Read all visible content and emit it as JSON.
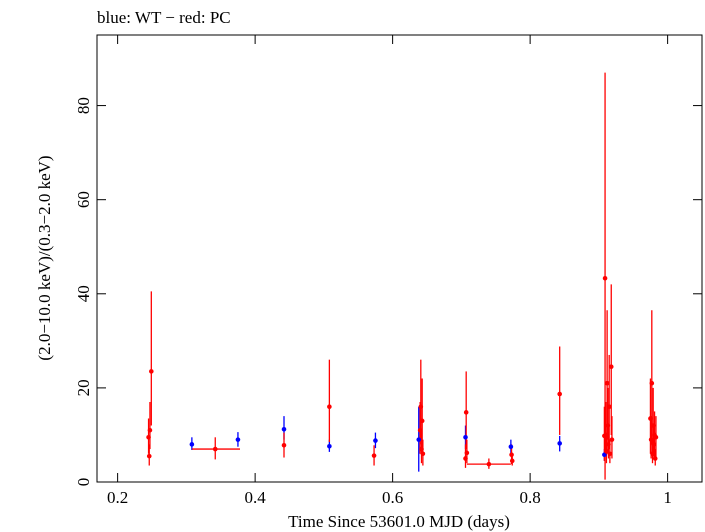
{
  "chart_data": {
    "type": "scatter",
    "title": "blue: WT − red: PC",
    "xlabel": "Time Since 53601.0 MJD (days)",
    "ylabel": "(2.0−10.0 keV)/(0.3−2.0 keV)",
    "xlim": [
      0.17,
      1.05
    ],
    "ylim": [
      0,
      95
    ],
    "xticks": [
      0.2,
      0.4,
      0.6,
      0.8,
      1
    ],
    "xtick_labels": [
      "0.2",
      "0.4",
      "0.6",
      "0.8",
      "1"
    ],
    "yticks": [
      0,
      20,
      40,
      60,
      80
    ],
    "ytick_labels": [
      "0",
      "20",
      "40",
      "60",
      "80"
    ],
    "grid": false,
    "series": [
      {
        "name": "WT",
        "color": "#0000ff",
        "points": [
          {
            "x": 0.308,
            "y": 8.0,
            "ylo": 6.8,
            "yhi": 9.5
          },
          {
            "x": 0.375,
            "y": 9.0,
            "ylo": 7.5,
            "yhi": 10.6
          },
          {
            "x": 0.442,
            "y": 11.2,
            "ylo": 9.0,
            "yhi": 14.0
          },
          {
            "x": 0.508,
            "y": 7.6,
            "ylo": 6.4,
            "yhi": 9.0
          },
          {
            "x": 0.575,
            "y": 8.8,
            "ylo": 7.2,
            "yhi": 10.5
          },
          {
            "x": 0.638,
            "y": 9.0,
            "ylo": 2.2,
            "yhi": 16.0
          },
          {
            "x": 0.706,
            "y": 9.5,
            "ylo": 7.0,
            "yhi": 12.0
          },
          {
            "x": 0.772,
            "y": 7.5,
            "ylo": 6.0,
            "yhi": 9.0
          },
          {
            "x": 0.843,
            "y": 8.2,
            "ylo": 6.5,
            "yhi": 9.8
          },
          {
            "x": 0.908,
            "y": 5.8,
            "ylo": 4.5,
            "yhi": 7.0
          }
        ]
      },
      {
        "name": "PC",
        "color": "#ff0000",
        "points": [
          {
            "x": 0.245,
            "y": 9.5,
            "ylo": 6.0,
            "yhi": 13.5
          },
          {
            "x": 0.246,
            "y": 5.5,
            "ylo": 3.5,
            "yhi": 8.0
          },
          {
            "x": 0.247,
            "y": 11.0,
            "ylo": 7.0,
            "yhi": 17.0
          },
          {
            "x": 0.249,
            "y": 23.5,
            "ylo": 12.0,
            "yhi": 40.5
          },
          {
            "x": 0.342,
            "y": 7.0,
            "ylo": 4.8,
            "yhi": 9.5,
            "xlo": 0.308,
            "xhi": 0.378
          },
          {
            "x": 0.442,
            "y": 7.8,
            "ylo": 5.2,
            "yhi": 10.5
          },
          {
            "x": 0.508,
            "y": 16.0,
            "ylo": 8.5,
            "yhi": 26.0
          },
          {
            "x": 0.573,
            "y": 5.6,
            "ylo": 3.5,
            "yhi": 7.8
          },
          {
            "x": 0.64,
            "y": 11.0,
            "ylo": 6.0,
            "yhi": 17.0
          },
          {
            "x": 0.641,
            "y": 16.0,
            "ylo": 8.0,
            "yhi": 26.0
          },
          {
            "x": 0.642,
            "y": 7.0,
            "ylo": 4.0,
            "yhi": 11.0
          },
          {
            "x": 0.643,
            "y": 13.0,
            "ylo": 6.0,
            "yhi": 22.0
          },
          {
            "x": 0.644,
            "y": 6.0,
            "ylo": 3.5,
            "yhi": 9.0
          },
          {
            "x": 0.706,
            "y": 5.0,
            "ylo": 3.0,
            "yhi": 8.0
          },
          {
            "x": 0.707,
            "y": 14.8,
            "ylo": 7.0,
            "yhi": 23.5
          },
          {
            "x": 0.708,
            "y": 6.2,
            "ylo": 4.0,
            "yhi": 9.0
          },
          {
            "x": 0.74,
            "y": 3.8,
            "ylo": 2.8,
            "yhi": 5.0,
            "xlo": 0.708,
            "xhi": 0.772
          },
          {
            "x": 0.773,
            "y": 5.8,
            "ylo": 3.8,
            "yhi": 8.0
          },
          {
            "x": 0.774,
            "y": 4.5,
            "ylo": 3.5,
            "yhi": 6.0
          },
          {
            "x": 0.843,
            "y": 18.7,
            "ylo": 10.0,
            "yhi": 28.8
          },
          {
            "x": 0.908,
            "y": 9.8,
            "ylo": 4.5,
            "yhi": 16.0
          },
          {
            "x": 0.909,
            "y": 43.3,
            "ylo": 0.5,
            "yhi": 87.0
          },
          {
            "x": 0.91,
            "y": 10.0,
            "ylo": 5.5,
            "yhi": 17.0
          },
          {
            "x": 0.911,
            "y": 6.5,
            "ylo": 4.0,
            "yhi": 10.0
          },
          {
            "x": 0.912,
            "y": 21.0,
            "ylo": 9.0,
            "yhi": 36.5
          },
          {
            "x": 0.913,
            "y": 12.0,
            "ylo": 6.0,
            "yhi": 20.0
          },
          {
            "x": 0.914,
            "y": 8.0,
            "ylo": 5.0,
            "yhi": 12.0
          },
          {
            "x": 0.915,
            "y": 16.0,
            "ylo": 7.0,
            "yhi": 27.0
          },
          {
            "x": 0.916,
            "y": 6.0,
            "ylo": 4.0,
            "yhi": 9.0
          },
          {
            "x": 0.918,
            "y": 24.5,
            "ylo": 10.0,
            "yhi": 42.0
          },
          {
            "x": 0.919,
            "y": 9.0,
            "ylo": 5.0,
            "yhi": 14.0
          },
          {
            "x": 0.975,
            "y": 13.5,
            "ylo": 6.0,
            "yhi": 22.0
          },
          {
            "x": 0.976,
            "y": 9.0,
            "ylo": 5.0,
            "yhi": 14.0
          },
          {
            "x": 0.977,
            "y": 21.0,
            "ylo": 8.0,
            "yhi": 36.5
          },
          {
            "x": 0.978,
            "y": 6.0,
            "ylo": 4.0,
            "yhi": 9.0
          },
          {
            "x": 0.979,
            "y": 12.0,
            "ylo": 5.5,
            "yhi": 20.0
          },
          {
            "x": 0.98,
            "y": 8.0,
            "ylo": 5.0,
            "yhi": 12.0
          },
          {
            "x": 0.981,
            "y": 10.0,
            "ylo": 5.0,
            "yhi": 15.0
          },
          {
            "x": 0.982,
            "y": 5.0,
            "ylo": 3.5,
            "yhi": 7.0
          },
          {
            "x": 0.983,
            "y": 9.5,
            "ylo": 5.0,
            "yhi": 14.0
          }
        ]
      }
    ]
  }
}
